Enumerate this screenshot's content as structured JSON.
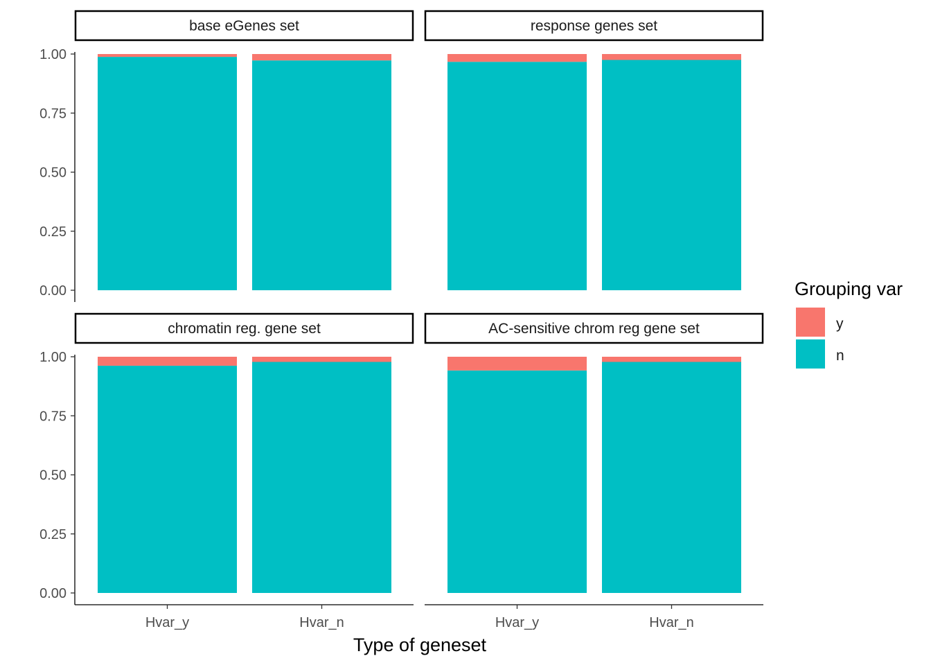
{
  "chart_data": {
    "type": "bar",
    "stacked": true,
    "layout": "facet-grid-2x2",
    "xlabel": "Type of geneset",
    "ylabel": "",
    "ylim": [
      0,
      1
    ],
    "yticks": [
      "0.00",
      "0.25",
      "0.50",
      "0.75",
      "1.00"
    ],
    "categories": [
      "Hvar_y",
      "Hvar_n"
    ],
    "grid": false,
    "legend": {
      "title": "Grouping var",
      "placement": "right",
      "entries": [
        {
          "name": "y",
          "color": "#F8766D"
        },
        {
          "name": "n",
          "color": "#00BFC4"
        }
      ]
    },
    "panels": [
      {
        "title": "base eGenes set",
        "series": [
          {
            "name": "y",
            "values": [
              0.012,
              0.027
            ]
          },
          {
            "name": "n",
            "values": [
              0.988,
              0.973
            ]
          }
        ]
      },
      {
        "title": "response genes set",
        "series": [
          {
            "name": "y",
            "values": [
              0.033,
              0.025
            ]
          },
          {
            "name": "n",
            "values": [
              0.967,
              0.975
            ]
          }
        ]
      },
      {
        "title": "chromatin reg. gene set",
        "series": [
          {
            "name": "y",
            "values": [
              0.038,
              0.022
            ]
          },
          {
            "name": "n",
            "values": [
              0.962,
              0.978
            ]
          }
        ]
      },
      {
        "title": "AC-sensitive chrom reg gene set",
        "series": [
          {
            "name": "y",
            "values": [
              0.058,
              0.022
            ]
          },
          {
            "name": "n",
            "values": [
              0.942,
              0.978
            ]
          }
        ]
      }
    ]
  }
}
